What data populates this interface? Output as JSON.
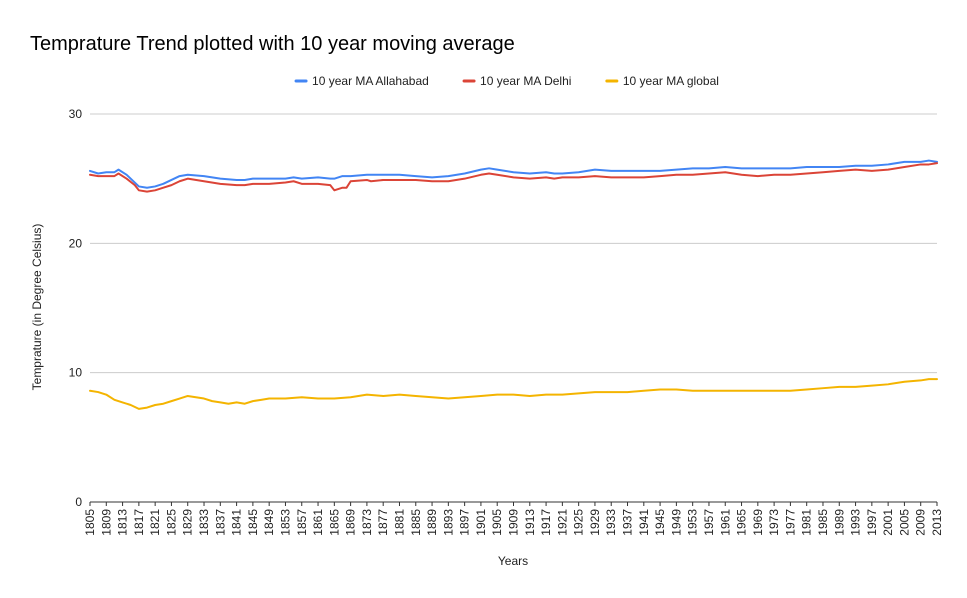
{
  "chart_data": {
    "type": "line",
    "title": "Temprature  Trend plotted with 10 year moving average",
    "xlabel": "Years",
    "ylabel": "Temprature (in Degree Celsius)",
    "ylim": [
      0,
      30
    ],
    "yticks": [
      0,
      10,
      20,
      30
    ],
    "xlim": [
      1805,
      2013
    ],
    "xticks": [
      1805,
      1809,
      1813,
      1817,
      1821,
      1825,
      1829,
      1833,
      1837,
      1841,
      1845,
      1849,
      1853,
      1857,
      1861,
      1865,
      1869,
      1873,
      1877,
      1881,
      1885,
      1889,
      1893,
      1897,
      1901,
      1905,
      1909,
      1913,
      1917,
      1921,
      1925,
      1929,
      1933,
      1937,
      1941,
      1945,
      1949,
      1953,
      1957,
      1961,
      1965,
      1969,
      1973,
      1977,
      1981,
      1985,
      1989,
      1993,
      1997,
      2001,
      2005,
      2009,
      2013
    ],
    "legend_position": "top",
    "grid": true,
    "series": [
      {
        "name": "10 year MA Allahabad",
        "color": "#4285f4",
        "x": [
          1805,
          1807,
          1809,
          1811,
          1812,
          1814,
          1816,
          1817,
          1819,
          1821,
          1823,
          1825,
          1827,
          1829,
          1833,
          1837,
          1841,
          1843,
          1845,
          1849,
          1853,
          1855,
          1857,
          1861,
          1864,
          1865,
          1867,
          1869,
          1873,
          1877,
          1881,
          1885,
          1889,
          1893,
          1897,
          1901,
          1903,
          1905,
          1909,
          1913,
          1917,
          1919,
          1921,
          1925,
          1929,
          1933,
          1937,
          1941,
          1945,
          1949,
          1953,
          1957,
          1961,
          1965,
          1969,
          1973,
          1977,
          1981,
          1985,
          1989,
          1993,
          1997,
          2001,
          2005,
          2009,
          2011,
          2013
        ],
        "y": [
          25.6,
          25.4,
          25.5,
          25.5,
          25.7,
          25.3,
          24.7,
          24.4,
          24.3,
          24.4,
          24.6,
          24.9,
          25.2,
          25.3,
          25.2,
          25.0,
          24.9,
          24.9,
          25.0,
          25.0,
          25.0,
          25.1,
          25.0,
          25.1,
          25.0,
          25.0,
          25.2,
          25.2,
          25.3,
          25.3,
          25.3,
          25.2,
          25.1,
          25.2,
          25.4,
          25.7,
          25.8,
          25.7,
          25.5,
          25.4,
          25.5,
          25.4,
          25.4,
          25.5,
          25.7,
          25.6,
          25.6,
          25.6,
          25.6,
          25.7,
          25.8,
          25.8,
          25.9,
          25.8,
          25.8,
          25.8,
          25.8,
          25.9,
          25.9,
          25.9,
          26.0,
          26.0,
          26.1,
          26.3,
          26.3,
          26.4,
          26.3
        ]
      },
      {
        "name": "10 year MA Delhi",
        "color": "#db4437",
        "x": [
          1805,
          1807,
          1809,
          1811,
          1812,
          1814,
          1816,
          1817,
          1819,
          1821,
          1823,
          1825,
          1827,
          1829,
          1833,
          1837,
          1841,
          1843,
          1845,
          1849,
          1853,
          1855,
          1857,
          1861,
          1864,
          1865,
          1867,
          1868,
          1869,
          1873,
          1874,
          1877,
          1881,
          1885,
          1889,
          1893,
          1897,
          1901,
          1903,
          1905,
          1909,
          1913,
          1917,
          1919,
          1921,
          1925,
          1929,
          1933,
          1937,
          1941,
          1945,
          1949,
          1953,
          1957,
          1961,
          1965,
          1969,
          1973,
          1977,
          1981,
          1985,
          1989,
          1993,
          1997,
          2001,
          2005,
          2009,
          2011,
          2013
        ],
        "y": [
          25.3,
          25.2,
          25.2,
          25.2,
          25.4,
          25.0,
          24.5,
          24.1,
          24.0,
          24.1,
          24.3,
          24.5,
          24.8,
          25.0,
          24.8,
          24.6,
          24.5,
          24.5,
          24.6,
          24.6,
          24.7,
          24.8,
          24.6,
          24.6,
          24.5,
          24.1,
          24.3,
          24.3,
          24.8,
          24.9,
          24.8,
          24.9,
          24.9,
          24.9,
          24.8,
          24.8,
          25.0,
          25.3,
          25.4,
          25.3,
          25.1,
          25.0,
          25.1,
          25.0,
          25.1,
          25.1,
          25.2,
          25.1,
          25.1,
          25.1,
          25.2,
          25.3,
          25.3,
          25.4,
          25.5,
          25.3,
          25.2,
          25.3,
          25.3,
          25.4,
          25.5,
          25.6,
          25.7,
          25.6,
          25.7,
          25.9,
          26.1,
          26.1,
          26.2
        ]
      },
      {
        "name": "10 year MA global",
        "color": "#f4b400",
        "x": [
          1805,
          1807,
          1809,
          1811,
          1813,
          1815,
          1817,
          1819,
          1821,
          1823,
          1825,
          1827,
          1829,
          1831,
          1833,
          1835,
          1837,
          1839,
          1841,
          1843,
          1845,
          1847,
          1849,
          1853,
          1857,
          1861,
          1865,
          1869,
          1873,
          1877,
          1881,
          1885,
          1889,
          1893,
          1897,
          1901,
          1905,
          1909,
          1913,
          1917,
          1921,
          1925,
          1929,
          1933,
          1937,
          1941,
          1945,
          1949,
          1953,
          1957,
          1961,
          1965,
          1969,
          1973,
          1977,
          1981,
          1985,
          1989,
          1993,
          1997,
          2001,
          2005,
          2009,
          2011,
          2013
        ],
        "y": [
          8.6,
          8.5,
          8.3,
          7.9,
          7.7,
          7.5,
          7.2,
          7.3,
          7.5,
          7.6,
          7.8,
          8.0,
          8.2,
          8.1,
          8.0,
          7.8,
          7.7,
          7.6,
          7.7,
          7.6,
          7.8,
          7.9,
          8.0,
          8.0,
          8.1,
          8.0,
          8.0,
          8.1,
          8.3,
          8.2,
          8.3,
          8.2,
          8.1,
          8.0,
          8.1,
          8.2,
          8.3,
          8.3,
          8.2,
          8.3,
          8.3,
          8.4,
          8.5,
          8.5,
          8.5,
          8.6,
          8.7,
          8.7,
          8.6,
          8.6,
          8.6,
          8.6,
          8.6,
          8.6,
          8.6,
          8.7,
          8.8,
          8.9,
          8.9,
          9.0,
          9.1,
          9.3,
          9.4,
          9.5,
          9.5
        ]
      }
    ]
  }
}
